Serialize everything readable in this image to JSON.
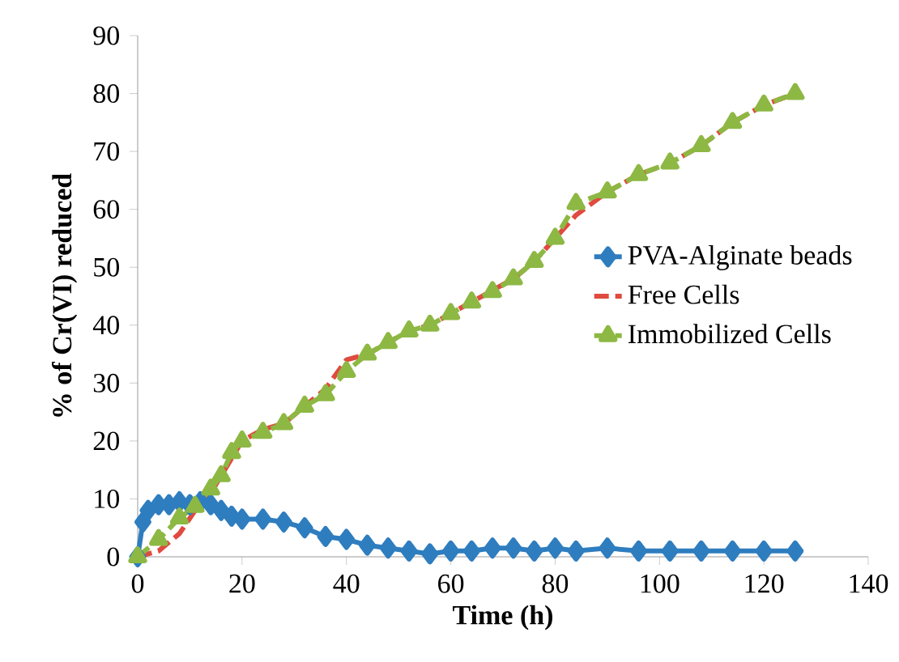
{
  "chart_data": {
    "type": "line",
    "xlabel": "Time (h)",
    "ylabel": "% of Cr(VI) reduced",
    "xlim": [
      0,
      140
    ],
    "ylim": [
      0,
      90
    ],
    "xticks": [
      0,
      20,
      40,
      60,
      80,
      100,
      120,
      140
    ],
    "yticks": [
      0,
      10,
      20,
      30,
      40,
      50,
      60,
      70,
      80,
      90
    ],
    "legend": "right",
    "series": [
      {
        "name": "PVA-Alginate beads",
        "color": "#2e7dbf",
        "marker": "diamond",
        "line_style": "solid",
        "x": [
          0,
          1,
          2,
          4,
          6,
          8,
          10,
          12,
          14,
          16,
          18,
          20,
          24,
          28,
          32,
          36,
          40,
          44,
          48,
          52,
          56,
          60,
          64,
          68,
          72,
          76,
          80,
          84,
          90,
          96,
          102,
          108,
          114,
          120,
          126
        ],
        "values": [
          0,
          6,
          8,
          9,
          9,
          9.5,
          9,
          9.5,
          9,
          8,
          7,
          6.5,
          6.5,
          6,
          5,
          3.5,
          3,
          2,
          1.5,
          1,
          0.5,
          1,
          1,
          1.5,
          1.5,
          1,
          1.5,
          1,
          1.5,
          1,
          1,
          1,
          1,
          1,
          1
        ]
      },
      {
        "name": "Free Cells",
        "color": "#e04a3f",
        "marker": "none",
        "line_style": "dashed",
        "x": [
          0,
          4,
          8,
          11,
          14,
          16,
          18,
          20,
          24,
          28,
          32,
          36,
          40,
          44,
          48,
          52,
          56,
          60,
          64,
          68,
          72,
          76,
          80,
          84,
          90,
          96,
          102,
          108,
          114,
          120,
          126
        ],
        "values": [
          0,
          1,
          4,
          8,
          11,
          14,
          17,
          20,
          22,
          23,
          26,
          29,
          34,
          35,
          37,
          39,
          40,
          42,
          44,
          46,
          48,
          51,
          55,
          59,
          63,
          66,
          68,
          71,
          75,
          78,
          80
        ]
      },
      {
        "name": "Immobilized Cells",
        "color": "#8db843",
        "marker": "triangle",
        "line_style": "dashed",
        "x": [
          0,
          4,
          8,
          11,
          14,
          16,
          18,
          20,
          24,
          28,
          32,
          36,
          40,
          44,
          48,
          52,
          56,
          60,
          64,
          68,
          72,
          76,
          80,
          84,
          90,
          96,
          102,
          108,
          114,
          120,
          126
        ],
        "values": [
          0,
          3,
          6.7,
          8.7,
          11.7,
          14,
          18,
          20,
          21.5,
          23,
          26,
          28,
          32,
          35,
          37,
          39,
          40,
          42,
          44,
          45.8,
          48,
          51,
          55,
          61,
          63,
          66,
          68,
          71,
          75,
          78,
          80
        ]
      }
    ]
  }
}
